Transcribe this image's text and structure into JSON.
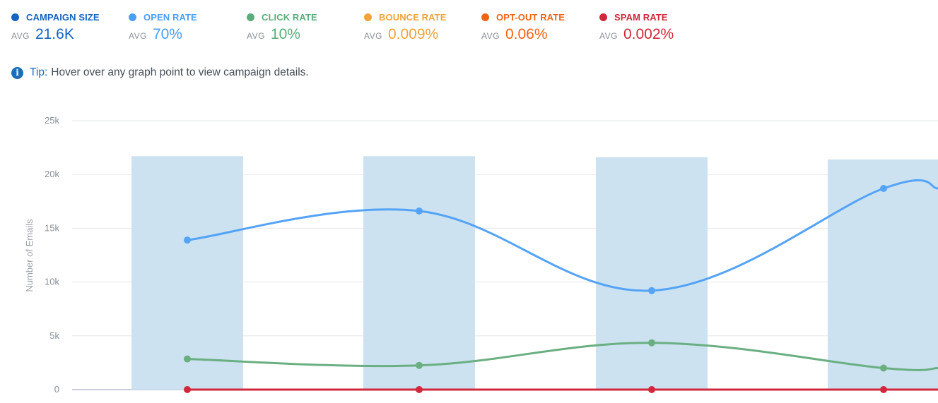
{
  "metrics": [
    {
      "label": "CAMPAIGN SIZE",
      "avg_tag": "AVG",
      "avg_value": "21.6K",
      "color": "#1565c0"
    },
    {
      "label": "OPEN RATE",
      "avg_tag": "AVG",
      "avg_value": "70%",
      "color": "#4a9ff5"
    },
    {
      "label": "CLICK RATE",
      "avg_tag": "AVG",
      "avg_value": "10%",
      "color": "#5aad7a"
    },
    {
      "label": "BOUNCE RATE",
      "avg_tag": "AVG",
      "avg_value": "0.009%",
      "color": "#f2a23a"
    },
    {
      "label": "OPT-OUT RATE",
      "avg_tag": "AVG",
      "avg_value": "0.06%",
      "color": "#f06414"
    },
    {
      "label": "SPAM RATE",
      "avg_tag": "AVG",
      "avg_value": "0.002%",
      "color": "#d0283c"
    }
  ],
  "tip": {
    "prefix": "Tip:",
    "text": "Hover over any graph point to view campaign details."
  },
  "chart_data": {
    "type": "bar",
    "ylabel": "Number of Emails",
    "ylim": [
      0,
      25000
    ],
    "ytick_labels": [
      "0",
      "5k",
      "10k",
      "15k",
      "20k",
      "25k"
    ],
    "ytick_values": [
      0,
      5000,
      10000,
      15000,
      20000,
      25000
    ],
    "grid": true,
    "bars": {
      "values": [
        21700,
        21700,
        21600,
        21400
      ],
      "color": "#cce2f1"
    },
    "series": [
      {
        "values": [
          13900,
          16600,
          9200,
          18700
        ],
        "color": "#54a3f5"
      },
      {
        "values": [
          2850,
          2250,
          4350,
          2000
        ],
        "color": "#6aaf82"
      },
      {
        "values": [
          0,
          0,
          0,
          0
        ],
        "color": "#d0283c"
      }
    ]
  }
}
